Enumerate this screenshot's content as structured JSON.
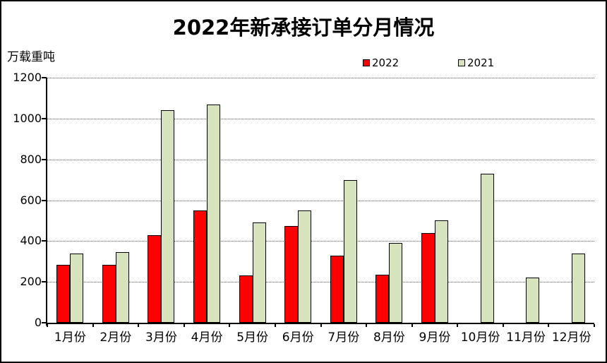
{
  "chart_data": {
    "type": "bar",
    "title": "2022年新承接订单分月情况",
    "ylabel": "万载重吨",
    "xlabel": "",
    "categories": [
      "1月份",
      "2月份",
      "3月份",
      "4月份",
      "5月份",
      "6月份",
      "7月份",
      "8月份",
      "9月份",
      "10月份",
      "11月份",
      "12月份"
    ],
    "series": [
      {
        "name": "2022",
        "color": "#ff0000",
        "values": [
          285,
          285,
          430,
          550,
          230,
          475,
          330,
          235,
          440,
          null,
          null,
          null
        ]
      },
      {
        "name": "2021",
        "color": "#d6e3bc",
        "values": [
          340,
          345,
          1040,
          1070,
          490,
          550,
          700,
          390,
          500,
          730,
          220,
          340
        ]
      }
    ],
    "ylim": [
      0,
      1200
    ],
    "yticks": [
      0,
      200,
      400,
      600,
      800,
      1000,
      1200
    ],
    "grid": "horizontal-dotted",
    "legend_position": "top-center",
    "axis_color": "#000000",
    "background_color": "#ffffff"
  }
}
